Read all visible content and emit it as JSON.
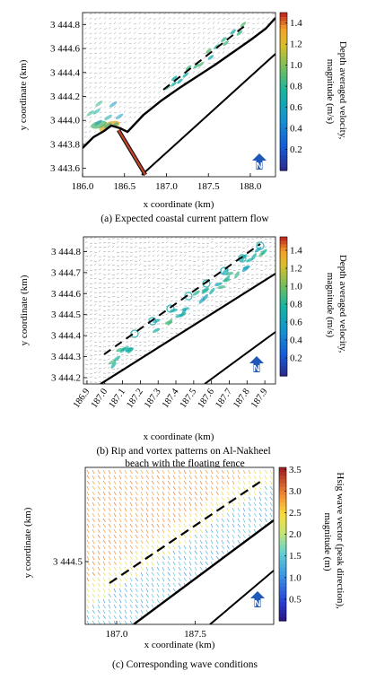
{
  "chart_data": [
    {
      "type": "heatmap",
      "xlabel": "x coordinate (km)",
      "ylabel": "y coordinate (km)",
      "x_ticks": [
        "186.0",
        "186.5",
        "187.0",
        "187.5",
        "188.0"
      ],
      "x_tick_values": [
        186.0,
        186.5,
        187.0,
        187.5,
        188.0
      ],
      "y_ticks": [
        "3 443.6",
        "3 443.8",
        "3 444.0",
        "3 444.2",
        "3 444.4",
        "3 444.6",
        "3 444.8"
      ],
      "y_tick_values": [
        3443.6,
        3443.8,
        3444.0,
        3444.2,
        3444.4,
        3444.6,
        3444.8
      ],
      "xlim": [
        186.0,
        188.3
      ],
      "ylim": [
        3443.53,
        3444.9
      ],
      "colorbar": {
        "label_line1": "Depth averaged velocity,",
        "label_line2": "magnitude (m/s)",
        "ticks": [
          "0.2",
          "0.4",
          "0.6",
          "0.8",
          "1.0",
          "1.2",
          "1.4"
        ],
        "tick_values": [
          0.2,
          0.4,
          0.6,
          0.8,
          1.0,
          1.2,
          1.4
        ],
        "range": [
          0.0,
          1.5
        ],
        "colormap": "parula"
      },
      "caption": "(a) Expected coastal current pattern flow",
      "north_icon": "north-arrow-icon"
    },
    {
      "type": "heatmap",
      "xlabel": "x coordinate (km)",
      "ylabel": "y coordinate (km)",
      "x_ticks": [
        "186.9",
        "187.0",
        "187.1",
        "187.2",
        "187.3",
        "187.4",
        "187.5",
        "187.6",
        "187.7",
        "187.8",
        "187.9"
      ],
      "x_tick_values": [
        186.9,
        187.0,
        187.1,
        187.2,
        187.3,
        187.4,
        187.5,
        187.6,
        187.7,
        187.8,
        187.9
      ],
      "y_ticks": [
        "3 444.2",
        "3 444.3",
        "3 444.4",
        "3 444.5",
        "3 444.6",
        "3 444.7",
        "3 444.8"
      ],
      "y_tick_values": [
        3444.2,
        3444.3,
        3444.4,
        3444.5,
        3444.6,
        3444.7,
        3444.8
      ],
      "xlim": [
        186.88,
        187.96
      ],
      "ylim": [
        3444.17,
        3444.87
      ],
      "colorbar": {
        "label_line1": "Depth averaged velocity,",
        "label_line2": "magnitude (m/s)",
        "ticks": [
          "0.2",
          "0.4",
          "0.6",
          "0.8",
          "1.0",
          "1.2",
          "1.4"
        ],
        "tick_values": [
          0.2,
          0.4,
          0.6,
          0.8,
          1.0,
          1.2,
          1.4
        ],
        "range": [
          0.0,
          1.55
        ],
        "colormap": "parula"
      },
      "caption_line1": "(b) Rip and vortex patterns on Al-Nakheel",
      "caption_line2": "beach with the floating fence",
      "north_icon": "north-arrow-icon"
    },
    {
      "type": "heatmap",
      "xlabel": "x coordinate (km)",
      "ylabel": "y coordinate (km)",
      "x_ticks": [
        "187.0",
        "187.5"
      ],
      "x_tick_values": [
        187.0,
        187.5
      ],
      "y_ticks": [
        "3 444.5"
      ],
      "y_tick_values": [
        3444.5
      ],
      "xlim": [
        186.8,
        188.0
      ],
      "ylim": [
        3444.2,
        3444.95
      ],
      "colorbar": {
        "label_line1": "Hsig wave vector (peak direction),",
        "label_line2": "magnitude (m)",
        "ticks": [
          "0.5",
          "1.0",
          "1.5",
          "2.0",
          "2.5",
          "3.0",
          "3.5"
        ],
        "tick_values": [
          0.5,
          1.0,
          1.5,
          2.0,
          2.5,
          3.0,
          3.5
        ],
        "range": [
          0.0,
          3.55
        ],
        "colormap": "jet"
      },
      "caption": "(c) Corresponding wave conditions",
      "north_icon": "north-arrow-icon"
    }
  ]
}
